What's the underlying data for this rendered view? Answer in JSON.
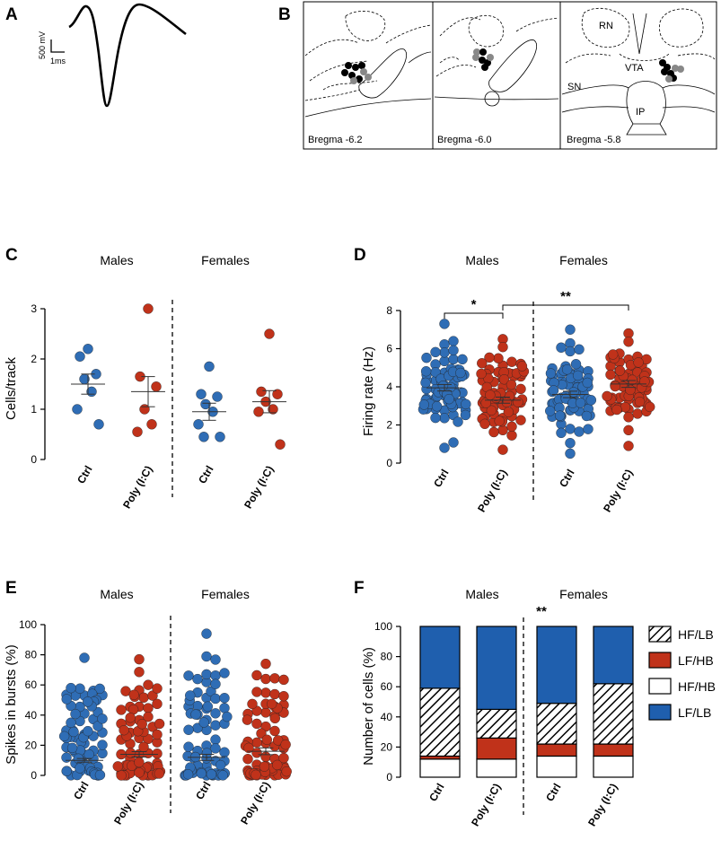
{
  "panels": {
    "A": {
      "label": "A",
      "scale_voltage": "500 mV",
      "scale_time": "1ms"
    },
    "B": {
      "label": "B",
      "sections": [
        {
          "bregma": "Bregma -6.2"
        },
        {
          "bregma": "Bregma -6.0"
        },
        {
          "bregma": "Bregma -5.8"
        }
      ],
      "regions": {
        "rn": "RN",
        "vta": "VTA",
        "sn": "SN",
        "ip": "IP"
      }
    }
  },
  "colors": {
    "ctrl": "#2f6db5",
    "poly": "#c0321a",
    "hfhb": "#ffffff",
    "lflb": "#1f5fae"
  },
  "chart_data": [
    {
      "id": "C",
      "panel_label": "C",
      "type": "scatter",
      "ylabel": "Cells/track",
      "ylim": [
        0,
        3
      ],
      "yticks": [
        "0",
        "1",
        "2",
        "3"
      ],
      "groups": [
        "Males",
        "Females"
      ],
      "categories": [
        "Ctrl",
        "Poly (I:C)",
        "Ctrl",
        "Poly (I:C)"
      ],
      "series": [
        {
          "name": "Ctrl",
          "color_key": "ctrl",
          "points": [
            2.2,
            2.05,
            1.7,
            1.6,
            1.35,
            1.0,
            0.7
          ],
          "mean": 1.5,
          "sem": 0.2
        },
        {
          "name": "Poly (I:C)",
          "color_key": "poly",
          "points": [
            3.0,
            1.65,
            1.45,
            1.0,
            0.7,
            0.55
          ],
          "mean": 1.35,
          "sem": 0.3
        },
        {
          "name": "Ctrl",
          "color_key": "ctrl",
          "points": [
            1.85,
            1.3,
            1.25,
            1.1,
            0.95,
            0.7,
            0.45,
            0.45
          ],
          "mean": 0.95,
          "sem": 0.17
        },
        {
          "name": "Poly (I:C)",
          "color_key": "poly",
          "points": [
            2.5,
            1.35,
            1.3,
            1.15,
            1.0,
            0.95,
            0.3
          ],
          "mean": 1.15,
          "sem": 0.22
        }
      ]
    },
    {
      "id": "D",
      "panel_label": "D",
      "type": "scatter",
      "ylabel": "Firing rate (Hz)",
      "ylim": [
        0,
        8
      ],
      "yticks": [
        "0",
        "2",
        "4",
        "6",
        "8"
      ],
      "groups": [
        "Males",
        "Females"
      ],
      "categories": [
        "Ctrl",
        "Poly (I:C)",
        "Ctrl",
        "Poly (I:C)"
      ],
      "n_points": [
        78,
        72,
        78,
        70
      ],
      "means": [
        3.95,
        3.3,
        3.6,
        4.15
      ],
      "sems": [
        0.17,
        0.16,
        0.17,
        0.18
      ],
      "ranges": [
        [
          0.8,
          7.3
        ],
        [
          0.7,
          6.5
        ],
        [
          0.5,
          7.0
        ],
        [
          0.9,
          6.8
        ]
      ],
      "color_keys": [
        "ctrl",
        "poly",
        "ctrl",
        "poly"
      ],
      "significance": [
        {
          "label": "*",
          "from": 0,
          "to": 1
        },
        {
          "label": "**",
          "from": 1,
          "to": 3
        }
      ]
    },
    {
      "id": "E",
      "panel_label": "E",
      "type": "scatter",
      "ylabel": "Spikes in bursts (%)",
      "ylim": [
        0,
        100
      ],
      "yticks": [
        "0",
        "20",
        "40",
        "60",
        "80",
        "100"
      ],
      "groups": [
        "Males",
        "Females"
      ],
      "categories": [
        "Ctrl",
        "Poly (I:C)",
        "Ctrl",
        "Poly (I:C)"
      ],
      "n_points": [
        75,
        72,
        70,
        70
      ],
      "means": [
        10,
        14,
        12,
        16
      ],
      "sems": [
        1.2,
        1.8,
        2.0,
        2.2
      ],
      "maxima": [
        78,
        77,
        94,
        74
      ],
      "color_keys": [
        "ctrl",
        "poly",
        "ctrl",
        "poly"
      ]
    },
    {
      "id": "F",
      "panel_label": "F",
      "type": "bar",
      "stacked": true,
      "ylabel": "Number of cells (%)",
      "ylim": [
        0,
        100
      ],
      "yticks": [
        "0",
        "20",
        "40",
        "60",
        "80",
        "100"
      ],
      "groups": [
        "Males",
        "Females"
      ],
      "categories": [
        "Ctrl",
        "Poly (I:C)",
        "Ctrl",
        "Poly (I:C)"
      ],
      "significance": "**",
      "series": [
        {
          "name": "HF/HB",
          "values": [
            12,
            12,
            14,
            14
          ]
        },
        {
          "name": "LF/HB",
          "values": [
            2,
            14,
            8,
            8
          ]
        },
        {
          "name": "HF/LB",
          "values": [
            45,
            19,
            27,
            40
          ]
        },
        {
          "name": "LF/LB",
          "values": [
            41,
            55,
            51,
            38
          ]
        }
      ],
      "legend": [
        "HF/LB",
        "LF/HB",
        "HF/HB",
        "LF/LB"
      ]
    }
  ]
}
